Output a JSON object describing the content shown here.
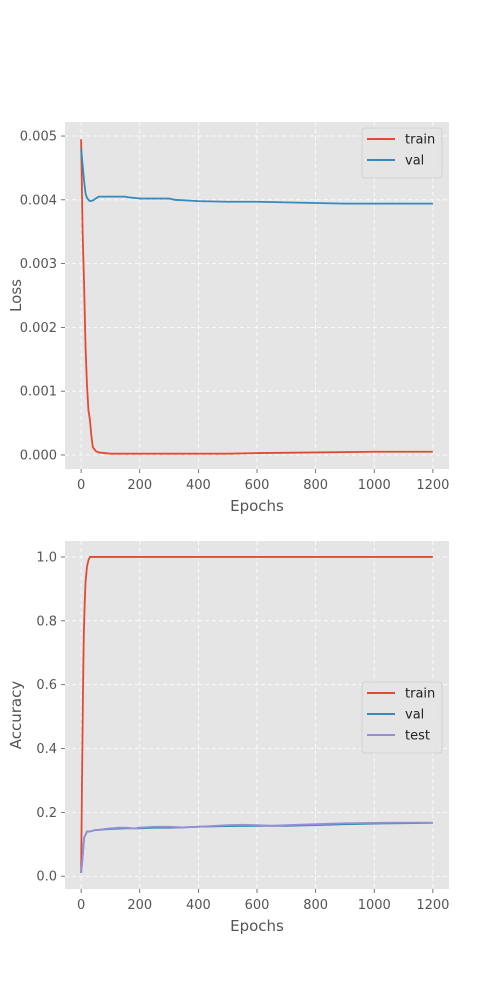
{
  "colors": {
    "train": "#e24a33",
    "val": "#348abd",
    "test": "#988ed5",
    "panel_bg": "#e5e5e5",
    "grid": "#ffffff"
  },
  "chart_data": [
    {
      "type": "line",
      "xlabel": "Epochs",
      "ylabel": "Loss",
      "xlim": [
        -55,
        1255
      ],
      "ylim": [
        -0.00022,
        0.00522
      ],
      "xticks": [
        0,
        200,
        400,
        600,
        800,
        1000,
        1200
      ],
      "xtick_labels": [
        "0",
        "200",
        "400",
        "600",
        "800",
        "1000",
        "1200"
      ],
      "yticks": [
        0.0,
        0.001,
        0.002,
        0.003,
        0.004,
        0.005
      ],
      "ytick_labels": [
        "0.000",
        "0.001",
        "0.002",
        "0.003",
        "0.004",
        "0.005"
      ],
      "grid": true,
      "legend_position": "top-right",
      "series": [
        {
          "name": "train",
          "color": "#e24a33",
          "x": [
            0,
            5,
            10,
            15,
            20,
            25,
            30,
            35,
            40,
            50,
            60,
            80,
            100,
            150,
            200,
            300,
            400,
            500,
            600,
            800,
            1000,
            1200
          ],
          "y": [
            0.00495,
            0.0035,
            0.0027,
            0.0017,
            0.0011,
            0.0007,
            0.00055,
            0.0003,
            0.00012,
            6e-05,
            4e-05,
            3e-05,
            2e-05,
            2e-05,
            2e-05,
            2e-05,
            2e-05,
            2e-05,
            3e-05,
            4e-05,
            5e-05,
            5e-05
          ]
        },
        {
          "name": "val",
          "color": "#348abd",
          "x": [
            0,
            5,
            10,
            15,
            20,
            25,
            30,
            40,
            50,
            60,
            70,
            80,
            100,
            120,
            150,
            160,
            200,
            250,
            300,
            320,
            400,
            500,
            600,
            700,
            800,
            900,
            1000,
            1100,
            1200
          ],
          "y": [
            0.0048,
            0.00455,
            0.0043,
            0.0041,
            0.00403,
            0.004,
            0.00398,
            0.00399,
            0.00402,
            0.00405,
            0.00405,
            0.00405,
            0.00405,
            0.00405,
            0.00405,
            0.00404,
            0.00402,
            0.00402,
            0.00402,
            0.004,
            0.00398,
            0.00397,
            0.00397,
            0.00396,
            0.00395,
            0.00394,
            0.00394,
            0.00394,
            0.00394
          ]
        }
      ]
    },
    {
      "type": "line",
      "xlabel": "Epochs",
      "ylabel": "Accuracy",
      "xlim": [
        -55,
        1255
      ],
      "ylim": [
        -0.04,
        1.05
      ],
      "xticks": [
        0,
        200,
        400,
        600,
        800,
        1000,
        1200
      ],
      "xtick_labels": [
        "0",
        "200",
        "400",
        "600",
        "800",
        "1000",
        "1200"
      ],
      "yticks": [
        0.0,
        0.2,
        0.4,
        0.6,
        0.8,
        1.0
      ],
      "ytick_labels": [
        "0.0",
        "0.2",
        "0.4",
        "0.6",
        "0.8",
        "1.0"
      ],
      "grid": true,
      "legend_position": "center-right",
      "series": [
        {
          "name": "train",
          "color": "#e24a33",
          "x": [
            0,
            3,
            6,
            9,
            12,
            15,
            20,
            25,
            30,
            40,
            50,
            100,
            200,
            400,
            600,
            800,
            1000,
            1200
          ],
          "y": [
            0.01,
            0.3,
            0.55,
            0.75,
            0.85,
            0.92,
            0.97,
            0.99,
            1.0,
            1.0,
            1.0,
            1.0,
            1.0,
            1.0,
            1.0,
            1.0,
            1.0,
            1.0
          ]
        },
        {
          "name": "val",
          "color": "#348abd",
          "x": [
            0,
            5,
            10,
            20,
            30,
            50,
            60,
            80,
            100,
            150,
            200,
            250,
            300,
            350,
            400,
            500,
            600,
            700,
            800,
            900,
            1000,
            1100,
            1200
          ],
          "y": [
            0.01,
            0.06,
            0.12,
            0.14,
            0.14,
            0.145,
            0.145,
            0.147,
            0.148,
            0.15,
            0.15,
            0.152,
            0.152,
            0.153,
            0.155,
            0.157,
            0.158,
            0.158,
            0.16,
            0.163,
            0.165,
            0.166,
            0.167
          ]
        },
        {
          "name": "test",
          "color": "#988ed5",
          "x": [
            0,
            5,
            10,
            20,
            30,
            50,
            60,
            80,
            100,
            130,
            150,
            180,
            200,
            250,
            300,
            350,
            400,
            500,
            550,
            600,
            650,
            700,
            800,
            900,
            1000,
            1100,
            1200
          ],
          "y": [
            0.01,
            0.06,
            0.12,
            0.14,
            0.14,
            0.145,
            0.145,
            0.148,
            0.15,
            0.152,
            0.152,
            0.15,
            0.152,
            0.155,
            0.155,
            0.153,
            0.155,
            0.16,
            0.161,
            0.16,
            0.158,
            0.16,
            0.163,
            0.166,
            0.167,
            0.168,
            0.168
          ]
        }
      ]
    }
  ]
}
